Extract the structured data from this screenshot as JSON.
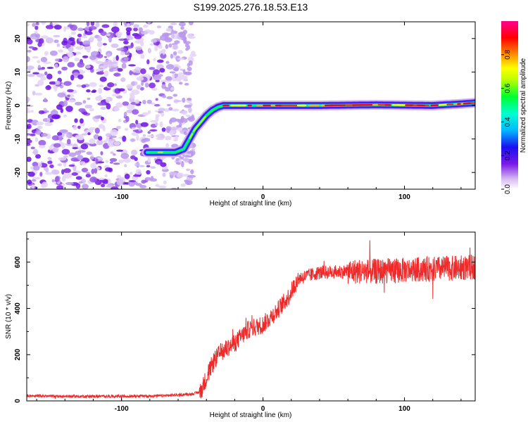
{
  "title": "S199.2025.276.18.53.E13",
  "chart_data": [
    {
      "type": "heatmap",
      "name": "spectrogram",
      "xlabel": "Height of straight line (km)",
      "ylabel": "Frequency (Hz)",
      "xlim": [
        -167,
        150
      ],
      "ylim": [
        -25,
        25
      ],
      "xticks": [
        "-100",
        "0",
        "100"
      ],
      "yticks": [
        "-20",
        "-10",
        "0",
        "10",
        "20"
      ],
      "ridge": {
        "description": "doppler track of peak amplitude",
        "x": [
          -82,
          -70,
          -62,
          -56,
          -52,
          -48,
          -44,
          -40,
          -36,
          -32,
          -28,
          -20,
          0,
          40,
          80,
          120,
          140,
          150
        ],
        "y": [
          -14,
          -14,
          -14,
          -13,
          -10,
          -7,
          -5,
          -3,
          -1.5,
          -0.5,
          0,
          0,
          0,
          0,
          0.2,
          0,
          0.5,
          0.8
        ]
      },
      "noise_region_xmax": -55,
      "colorbar": {
        "label": "Normalized spectral amplitude",
        "range": [
          0,
          1
        ],
        "ticks": [
          "0.0",
          "0.2",
          "0.4",
          "0.6",
          "0.8"
        ],
        "stops": [
          {
            "v": 0.0,
            "color": "#ffffff"
          },
          {
            "v": 0.06,
            "color": "#d7bcf2"
          },
          {
            "v": 0.15,
            "color": "#7a19e6"
          },
          {
            "v": 0.25,
            "color": "#1a10f0"
          },
          {
            "v": 0.35,
            "color": "#00b8ff"
          },
          {
            "v": 0.45,
            "color": "#00ffd0"
          },
          {
            "v": 0.55,
            "color": "#00ff30"
          },
          {
            "v": 0.65,
            "color": "#b8ff00"
          },
          {
            "v": 0.72,
            "color": "#ffff00"
          },
          {
            "v": 0.8,
            "color": "#ff9000"
          },
          {
            "v": 0.9,
            "color": "#ff0000"
          },
          {
            "v": 1.0,
            "color": "#ff0090"
          }
        ]
      }
    },
    {
      "type": "line",
      "name": "snr",
      "xlabel": "Height of straight line (km)",
      "ylabel": "SNR (10 * v/v)",
      "xlim": [
        -167,
        150
      ],
      "ylim": [
        0,
        730
      ],
      "xticks": [
        "-100",
        "0",
        "100"
      ],
      "yticks": [
        "0",
        "200",
        "400",
        "600"
      ],
      "color": "#ee2a2a",
      "series": [
        {
          "name": "SNR",
          "x": [
            -167,
            -140,
            -100,
            -70,
            -50,
            -44,
            -40,
            -35,
            -30,
            -20,
            -10,
            0,
            10,
            18,
            25,
            40,
            60,
            80,
            100,
            120,
            140,
            150
          ],
          "y": [
            22,
            20,
            20,
            22,
            30,
            40,
            100,
            170,
            210,
            250,
            310,
            330,
            390,
            450,
            530,
            555,
            560,
            560,
            565,
            570,
            575,
            580
          ]
        }
      ]
    }
  ]
}
